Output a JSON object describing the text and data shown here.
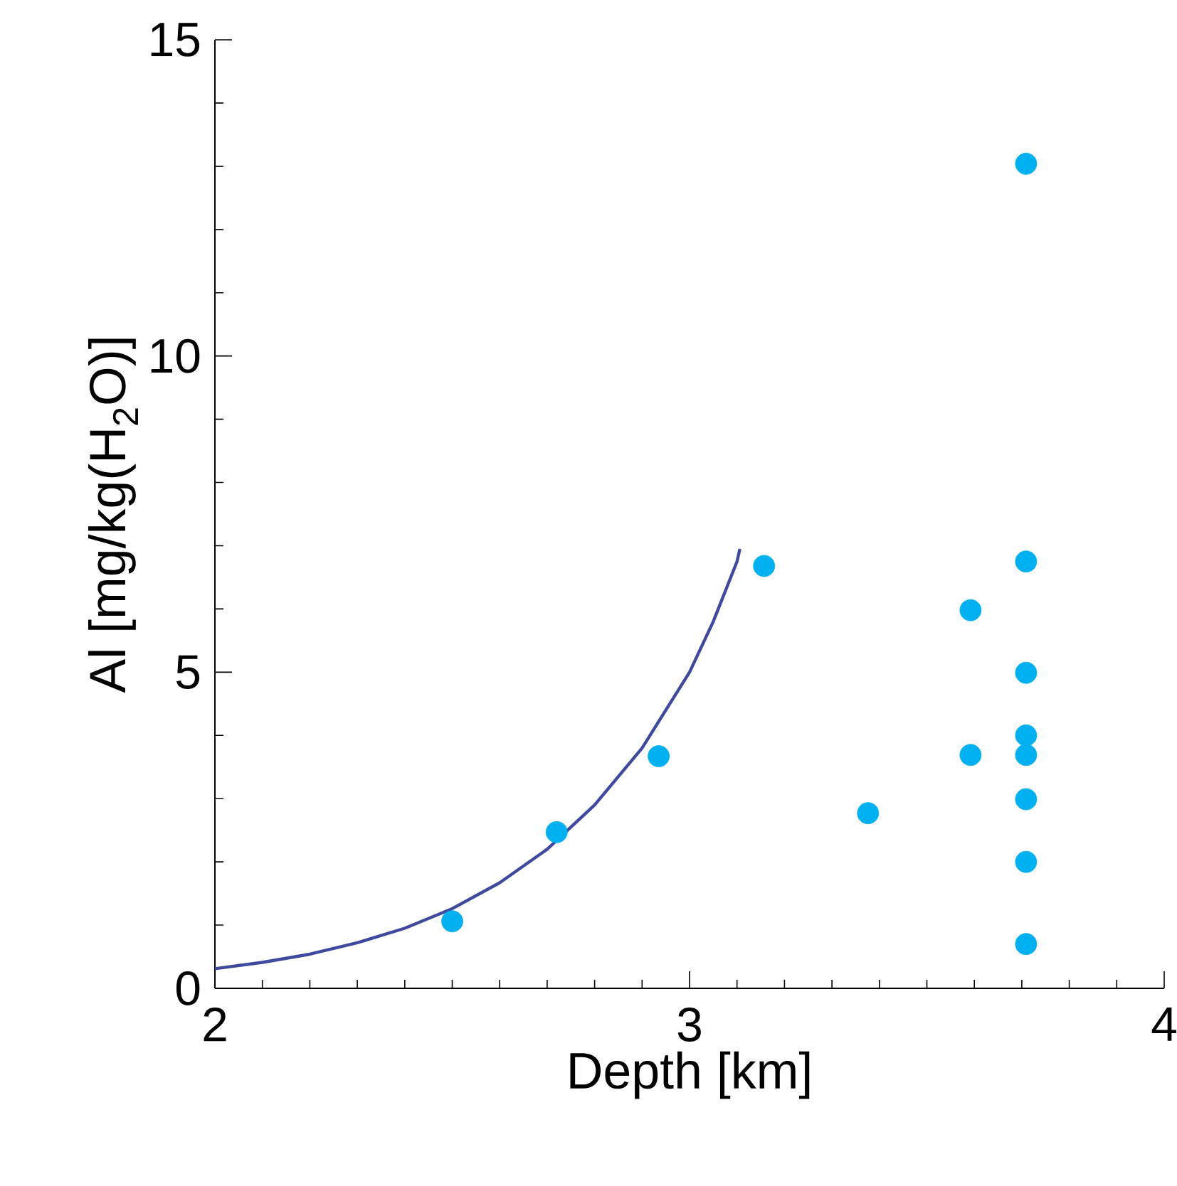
{
  "chart_data": {
    "type": "scatter",
    "xlabel": "Depth [km]",
    "ylabel": "Al [mg/kg(H$_{2}$O)]",
    "xlim": [
      2,
      4
    ],
    "xticks": [
      2,
      3,
      4
    ],
    "ylim": [
      0,
      15
    ],
    "yticks": [
      0,
      5,
      10,
      15
    ],
    "grid": false,
    "series": [
      {
        "marker": "circle",
        "color": "#00b0f0",
        "x": [
          2.5,
          2.72,
          2.935,
          3.157,
          3.376,
          3.592,
          3.592,
          3.709,
          3.709,
          3.709,
          3.709,
          3.709,
          3.709,
          3.709,
          3.709
        ],
        "values": [
          1.06,
          2.47,
          3.67,
          6.68,
          2.77,
          5.98,
          3.69,
          13.04,
          6.75,
          4.99,
          4.0,
          3.69,
          2.99,
          2.0,
          0.7
        ]
      },
      {
        "type": "line",
        "marker": "none",
        "line_style": "solid",
        "color": "#3f4a9e",
        "x": [
          2.0,
          2.1,
          2.2,
          2.3,
          2.4,
          2.5,
          2.6,
          2.7,
          2.8,
          2.9,
          2.95,
          3.0,
          3.05,
          3.1,
          3.106
        ],
        "values": [
          0.31,
          0.41,
          0.54,
          0.72,
          0.95,
          1.26,
          1.67,
          2.2,
          2.9,
          3.8,
          4.4,
          5.0,
          5.8,
          6.75,
          6.95
        ]
      }
    ]
  }
}
